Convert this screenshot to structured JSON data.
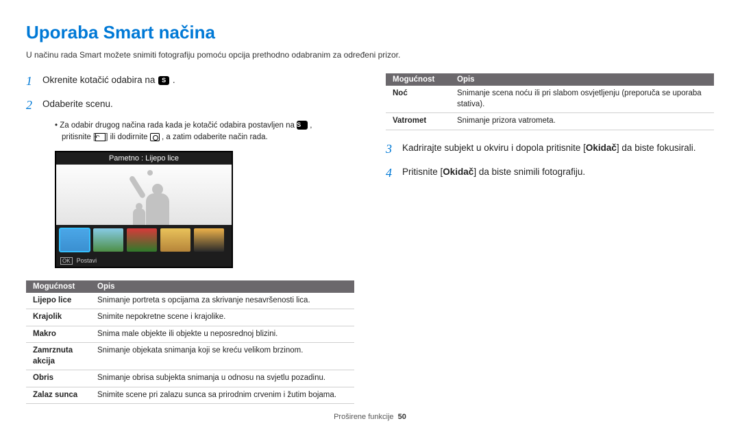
{
  "title": "Uporaba Smart načina",
  "intro": "U načinu rada Smart možete snimiti fotografiju pomoću opcija prethodno odabranim za određeni prizor.",
  "steps": {
    "s1_pre": "Okrenite kotačić odabira na ",
    "s1_post": " .",
    "s2": "Odaberite scenu.",
    "s3_pre": "Kadrirajte subjekt u okviru i dopola pritisnite [",
    "s3_bold": "Okidač",
    "s3_post": "] da biste fokusirali.",
    "s4_pre": "Pritisnite [",
    "s4_bold": "Okidač",
    "s4_post": "] da biste snimili fotografiju."
  },
  "bullet": {
    "line1_pre": "Za odabir drugog načina rada kada je kotačić odabira postavljen na ",
    "line1_post": " ,",
    "line2_pre": "pritisnite [",
    "line2_mid": "] ili dodirnite ",
    "line2_post": " , a zatim odaberite način rada."
  },
  "preview": {
    "label": "Pametno : Lijepo lice",
    "footer_ok": "OK",
    "footer_label": "Postavi",
    "thumbs": [
      {
        "bg": "linear-gradient(#4ba7e8,#3a8fd0)",
        "selected": true
      },
      {
        "bg": "linear-gradient(#87cbe6,#4e8f46)",
        "selected": false
      },
      {
        "bg": "linear-gradient(#d63a3a,#2f7a2b)",
        "selected": false
      },
      {
        "bg": "linear-gradient(#e9c25a,#b6853a)",
        "selected": false
      },
      {
        "bg": "linear-gradient(#edb24a,#2a2a2a)",
        "selected": false
      }
    ]
  },
  "tableHeaders": {
    "option": "Mogućnost",
    "desc": "Opis"
  },
  "leftTable": [
    {
      "name": "Lijepo lice",
      "desc": "Snimanje portreta s opcijama za skrivanje nesavršenosti lica."
    },
    {
      "name": "Krajolik",
      "desc": "Snimite nepokretne scene i krajolike."
    },
    {
      "name": "Makro",
      "desc": "Snima male objekte ili objekte u neposrednoj blizini."
    },
    {
      "name": "Zamrznuta akcija",
      "desc": "Snimanje objekata snimanja koji se kreću velikom brzinom."
    },
    {
      "name": "Obris",
      "desc": "Snimanje obrisa subjekta snimanja u odnosu na svjetlu pozadinu."
    },
    {
      "name": "Zalaz sunca",
      "desc": "Snimite scene pri zalazu sunca sa prirodnim crvenim i žutim bojama."
    }
  ],
  "rightTable": [
    {
      "name": "Noć",
      "desc": "Snimanje scena noću ili pri slabom osvjetljenju (preporuča se uporaba stativa)."
    },
    {
      "name": "Vatromet",
      "desc": "Snimanje prizora vatrometa."
    }
  ],
  "footer": {
    "section": "Proširene funkcije",
    "page": "50"
  },
  "colors": {
    "accent": "#0079d6",
    "tableHeaderBg": "#6b686c",
    "bodyBg": "#ffffff"
  }
}
